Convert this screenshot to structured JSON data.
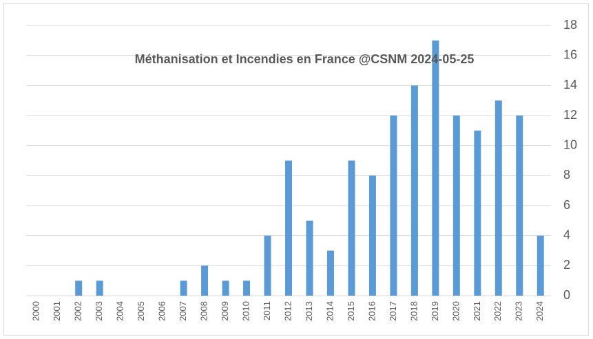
{
  "chart_data": {
    "type": "bar",
    "title": "Méthanisation et Incendies en France @CSNM 2024-05-25",
    "categories": [
      "2000",
      "2001",
      "2002",
      "2003",
      "2004",
      "2005",
      "2006",
      "2007",
      "2008",
      "2009",
      "2010",
      "2011",
      "2012",
      "2013",
      "2014",
      "2015",
      "2016",
      "2017",
      "2018",
      "2019",
      "2020",
      "2021",
      "2022",
      "2023",
      "2024"
    ],
    "values": [
      0,
      0,
      1,
      1,
      0,
      0,
      0,
      1,
      2,
      1,
      1,
      4,
      9,
      5,
      3,
      9,
      8,
      12,
      14,
      17,
      12,
      11,
      13,
      12,
      4
    ],
    "color": "#5b9bd5",
    "ylim": [
      0,
      18
    ],
    "yticks": [
      0,
      2,
      4,
      6,
      8,
      10,
      12,
      14,
      16,
      18
    ],
    "grid": true,
    "y_axis_side": "right"
  }
}
